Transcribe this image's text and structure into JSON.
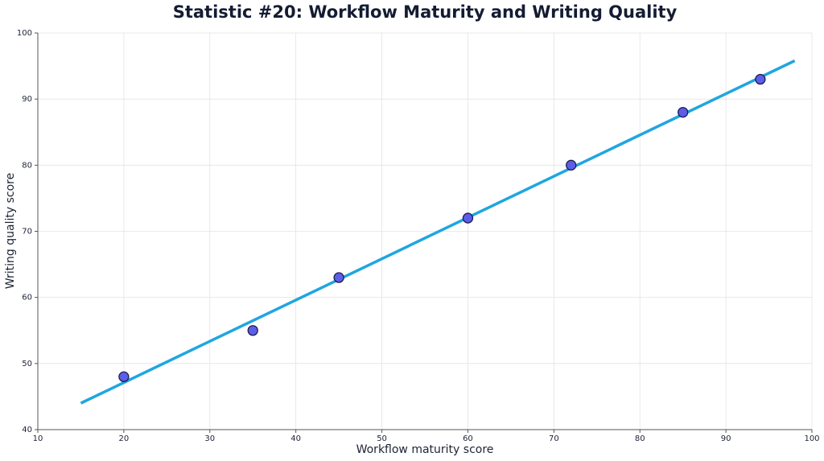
{
  "chart_data": {
    "type": "scatter",
    "title": "Statistic #20: Workflow Maturity and Writing Quality",
    "x_label": "Workflow maturity score",
    "y_label": "Writing quality score",
    "xlim": [
      10,
      100
    ],
    "ylim": [
      40,
      100
    ],
    "xticks": [
      10,
      20,
      30,
      40,
      50,
      60,
      70,
      80,
      90,
      100
    ],
    "yticks": [
      40,
      50,
      60,
      70,
      80,
      90,
      100
    ],
    "grid": true,
    "series": [
      {
        "type": "line",
        "color": "#1fa6e0",
        "x": [
          15,
          98
        ],
        "values": [
          44,
          95.8
        ]
      },
      {
        "type": "scatter",
        "color": "#5b5ee8",
        "edge_color": "#1e1b4b",
        "x": [
          20,
          35,
          45,
          60,
          72,
          85,
          94
        ],
        "values": [
          48,
          55,
          63,
          72,
          80,
          88,
          93
        ]
      }
    ]
  }
}
